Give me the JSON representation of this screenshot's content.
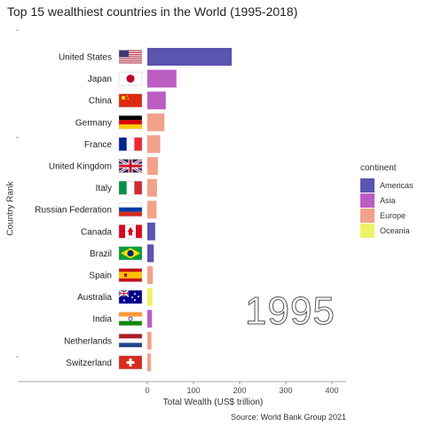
{
  "chart_data": {
    "type": "bar",
    "orientation": "horizontal",
    "title": "Top 15 wealthiest countries in the World (1995-2018)",
    "xlabel": "Total Wealth (US$ trillion)",
    "ylabel": "Country Rank",
    "caption": "Source: World Bank Group 2021",
    "year_label": "1995",
    "xlim": [
      -60,
      420
    ],
    "xticks": [
      0,
      100,
      200,
      300,
      400
    ],
    "grid": false,
    "legend_position": "right",
    "legend_title": "continent",
    "continents": [
      {
        "name": "Americas",
        "color": "#5b54b0"
      },
      {
        "name": "Asia",
        "color": "#bb5ec4"
      },
      {
        "name": "Europe",
        "color": "#f2a28a"
      },
      {
        "name": "Oceania",
        "color": "#eef266"
      }
    ],
    "bars": [
      {
        "country": "United States",
        "continent": "Americas",
        "value": 183,
        "flag": "us-flag"
      },
      {
        "country": "Japan",
        "continent": "Asia",
        "value": 63,
        "flag": "japan-flag"
      },
      {
        "country": "China",
        "continent": "Asia",
        "value": 40,
        "flag": "china-flag"
      },
      {
        "country": "Germany",
        "continent": "Europe",
        "value": 37,
        "flag": "germany-flag"
      },
      {
        "country": "France",
        "continent": "Europe",
        "value": 28,
        "flag": "france-flag"
      },
      {
        "country": "United Kingdom",
        "continent": "Europe",
        "value": 23,
        "flag": "uk-flag"
      },
      {
        "country": "Italy",
        "continent": "Europe",
        "value": 21,
        "flag": "italy-flag"
      },
      {
        "country": "Russian Federation",
        "continent": "Europe",
        "value": 20,
        "flag": "russia-flag"
      },
      {
        "country": "Canada",
        "continent": "Americas",
        "value": 17,
        "flag": "canada-flag"
      },
      {
        "country": "Brazil",
        "continent": "Americas",
        "value": 14,
        "flag": "brazil-flag"
      },
      {
        "country": "Spain",
        "continent": "Europe",
        "value": 12,
        "flag": "spain-flag"
      },
      {
        "country": "Australia",
        "continent": "Oceania",
        "value": 11,
        "flag": "australia-flag"
      },
      {
        "country": "India",
        "continent": "Asia",
        "value": 10,
        "flag": "india-flag"
      },
      {
        "country": "Netherlands",
        "continent": "Europe",
        "value": 9,
        "flag": "netherlands-flag"
      },
      {
        "country": "Switzerland",
        "continent": "Europe",
        "value": 8,
        "flag": "switzerland-flag"
      }
    ]
  }
}
